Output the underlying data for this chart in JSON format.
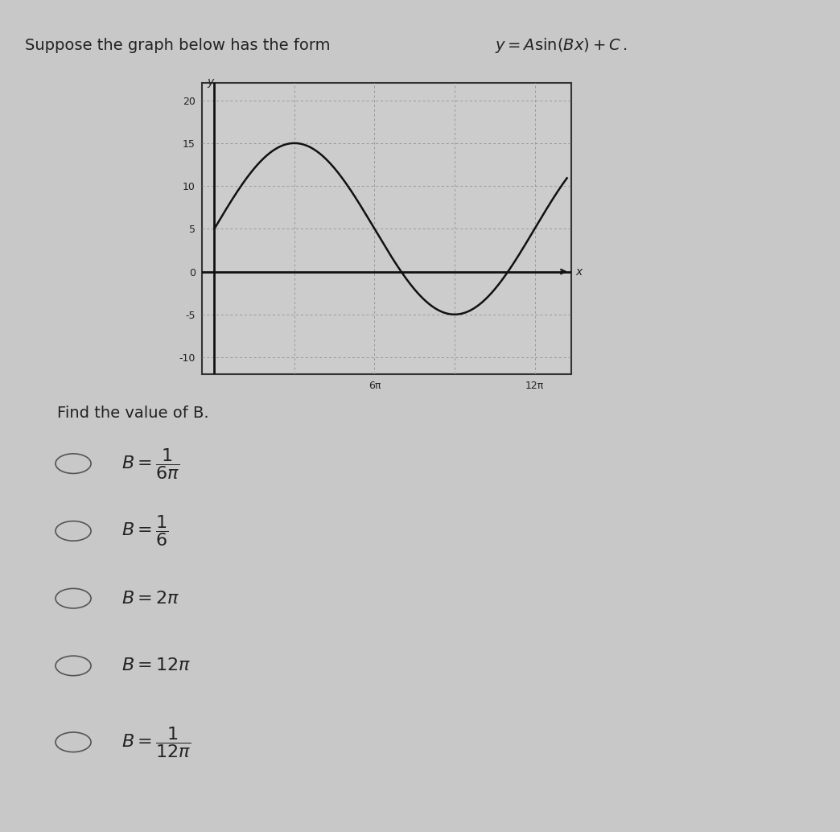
{
  "title_text": "Suppose the graph below has the form",
  "formula_text": "$y = A\\sin(Bx) + C$.",
  "graph_bg": "#cccccc",
  "grid_color": "#999999",
  "curve_color": "#111111",
  "axis_color": "#111111",
  "yticks": [
    -10,
    -5,
    0,
    5,
    10,
    15,
    20
  ],
  "xtick_labels": [
    "6π",
    "12π"
  ],
  "xtick_vals": [
    18.84955592,
    37.69911184
  ],
  "ylim": [
    -12,
    22
  ],
  "xlim": [
    -1.5,
    42
  ],
  "amplitude": 10,
  "vertical_shift": 5,
  "B_val": 0.16666666667,
  "find_text": "Find the value of B.",
  "background_color": "#c8c8c8",
  "text_color": "#222222",
  "title_fontsize": 14,
  "label_fontsize": 13,
  "choice_fontsize": 13,
  "y_label": "y",
  "x_label": "x"
}
